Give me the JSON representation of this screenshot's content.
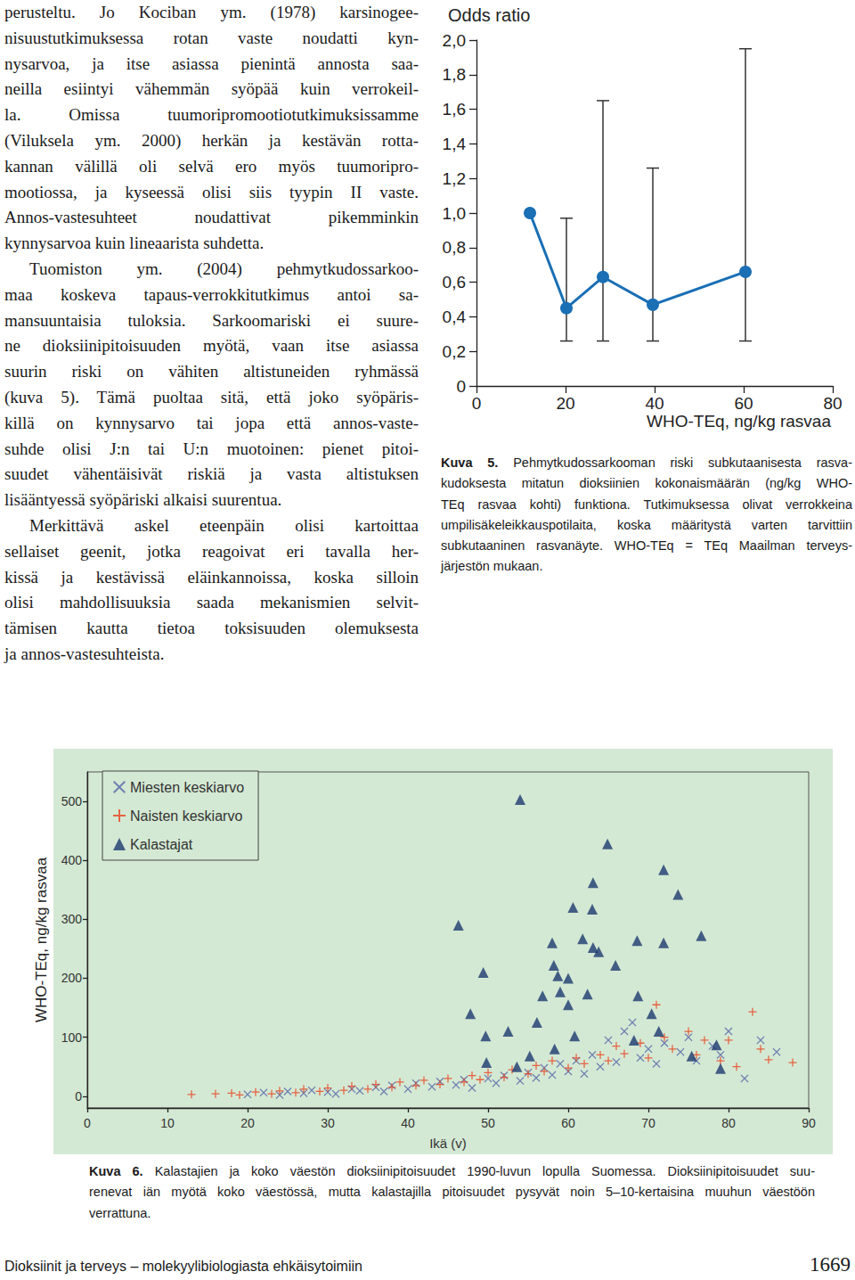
{
  "document": {
    "paragraphs": [
      [
        "perusteltu. Jo Kociban ym. (1978) karsinogee-",
        "nisuustutkimuksessa rotan vaste noudatti kyn-",
        "nysarvoa, ja itse asiassa pienintä annosta saa-",
        "neilla esiintyi vähemmän syöpää kuin verrokeil-",
        "la. Omissa tuumoripromootiotutkimuksissamme",
        "(Viluksela ym. 2000) herkän ja kestävän rotta-",
        "kannan välillä oli selvä ero myös tuumoripro-",
        "mootiossa, ja kyseessä olisi siis tyypin II vaste.",
        "Annos-vastesuhteet noudattivat pikemminkin",
        "kynnysarvoa kuin lineaarista suhdetta."
      ],
      [
        "Tuomiston ym. (2004) pehmytkudossarkoo-",
        "maa koskeva tapaus-verrokkitutkimus antoi sa-",
        "mansuuntaisia tuloksia. Sarkoomariski ei suure-",
        "ne dioksiinipitoisuuden myötä, vaan itse asiassa",
        "suurin riski on vähiten altistuneiden ryhmässä",
        "(kuva 5). Tämä puoltaa sitä, että joko syöpäris-",
        "killä on kynnysarvo tai jopa että annos-vaste-",
        "suhde olisi J:n tai U:n muotoinen: pienet pitoi-",
        "suudet vähentäisivät riskiä ja vasta altistuksen",
        "lisääntyessä syöpäriski alkaisi suurentua."
      ],
      [
        "Merkittävä askel eteenpäin olisi kartoittaa",
        "sellaiset geenit, jotka reagoivat eri tavalla her-",
        "kissä ja kestävissä eläinkannoissa, koska silloin",
        "olisi mahdollisuuksia saada mekanismien selvit-",
        "tämisen kautta tietoa toksisuuden olemuksesta",
        "ja annos-vastesuhteista."
      ]
    ],
    "figure5_caption": {
      "label": "Kuva 5.",
      "lines": [
        "Pehmytkudossarkooman riski subkutaanisesta rasva-",
        "kudoksesta mitatun dioksiinien kokonaismäärän (ng/kg WHO-",
        "TEq rasvaa kohti) funktiona. Tutkimuksessa olivat verrokkeina",
        "umpilisäkeleikkauspotilaita, koska määritystä varten tarvittiin",
        "subkutaaninen rasvanäyte. WHO-TEq = TEq Maailman terveys-",
        "järjestön mukaan."
      ]
    },
    "figure6_caption": {
      "label": "Kuva 6.",
      "lines": [
        "Kalastajien ja koko väestön dioksiinipitoisuudet 1990-luvun lopulla Suomessa. Dioksiinipitoisuudet suu-",
        "renevat iän myötä koko väestössä, mutta kalastajilla pitoisuudet pysyvät noin 5–10-kertaisina muuhun väestöön",
        "verrattuna."
      ]
    },
    "footer": {
      "title": "Dioksiinit ja terveys – molekyylibiologiasta ehkäisytoimiin",
      "page": "1669"
    }
  },
  "chart_data": [
    {
      "type": "line",
      "ylabel": "Odds ratio",
      "xlabel": "WHO-TEq, ng/kg rasvaa",
      "x": [
        12,
        20.2,
        28.4,
        39.6,
        60.4
      ],
      "values": [
        1.0,
        0.45,
        0.63,
        0.47,
        0.66
      ],
      "error_low": [
        null,
        0.26,
        0.26,
        0.26,
        0.26
      ],
      "error_high": [
        null,
        0.97,
        1.65,
        1.26,
        1.95
      ],
      "color": "#1a6fb5",
      "marker": "circle",
      "xlim": [
        0,
        80
      ],
      "xticks": [
        0,
        20,
        40,
        60,
        80
      ],
      "ylim": [
        0,
        2
      ],
      "yticks": [
        0,
        {
          "value": 0.2,
          "label": "0,2"
        },
        {
          "value": 0.4,
          "label": "0,4"
        },
        {
          "value": 0.6,
          "label": "0,6"
        },
        {
          "value": 0.8,
          "label": "0,8"
        },
        {
          "value": 1.0,
          "label": "1,0"
        },
        {
          "value": 1.2,
          "label": "1,2"
        },
        {
          "value": 1.4,
          "label": "1,4"
        },
        {
          "value": 1.6,
          "label": "1,6"
        },
        {
          "value": 1.8,
          "label": "1,8"
        },
        {
          "value": 2.0,
          "label": "2,0"
        }
      ],
      "grid": false
    },
    {
      "type": "scatter",
      "xlabel": "Ikä (v)",
      "ylabel": "WHO-TEq, ng/kg rasvaa",
      "legend": "upper left",
      "grid": false,
      "xlim": [
        0,
        90
      ],
      "xticks": [
        0,
        10,
        20,
        30,
        40,
        50,
        60,
        70,
        80,
        90
      ],
      "ylim": [
        -20,
        550
      ],
      "yticks": [
        0,
        100,
        200,
        300,
        400,
        500
      ],
      "series": [
        {
          "name": "Miesten keskiarvo",
          "color": "#5565a8",
          "marker": "x",
          "x": [
            20,
            22,
            24,
            25,
            27,
            28,
            30,
            31,
            33,
            34,
            36,
            37,
            38,
            40,
            41,
            43,
            44,
            46,
            47,
            48,
            50,
            51,
            52,
            54,
            55,
            56,
            57,
            58,
            59,
            60,
            61,
            62,
            63,
            64,
            65,
            66,
            67,
            68,
            69,
            70,
            71,
            72,
            74,
            75,
            76,
            78,
            79,
            80,
            82,
            84,
            86
          ],
          "values": [
            3,
            6,
            2,
            8,
            5,
            10,
            7,
            4,
            12,
            9,
            15,
            8,
            18,
            12,
            22,
            16,
            25,
            19,
            28,
            14,
            30,
            22,
            35,
            26,
            40,
            31,
            48,
            36,
            55,
            42,
            60,
            38,
            70,
            50,
            95,
            58,
            110,
            125,
            65,
            80,
            55,
            90,
            75,
            100,
            60,
            85,
            70,
            110,
            30,
            95,
            75
          ]
        },
        {
          "name": "Naisten keskiarvo",
          "color": "#e8401c",
          "marker": "plus",
          "x": [
            13,
            16,
            18,
            19,
            21,
            23,
            24,
            26,
            27,
            29,
            30,
            32,
            33,
            35,
            36,
            38,
            39,
            41,
            42,
            44,
            45,
            47,
            48,
            49,
            50,
            52,
            53,
            55,
            56,
            57,
            58,
            60,
            61,
            62,
            64,
            65,
            66,
            67,
            69,
            70,
            71,
            72,
            73,
            75,
            76,
            77,
            79,
            80,
            81,
            83,
            84,
            85,
            88
          ],
          "values": [
            3,
            4,
            5,
            2,
            7,
            4,
            9,
            6,
            12,
            8,
            14,
            10,
            17,
            12,
            20,
            15,
            24,
            18,
            27,
            20,
            30,
            24,
            35,
            28,
            40,
            32,
            45,
            38,
            52,
            42,
            60,
            48,
            65,
            55,
            70,
            60,
            85,
            72,
            90,
            65,
            155,
            100,
            80,
            110,
            70,
            95,
            60,
            95,
            50,
            143,
            80,
            62,
            57
          ]
        },
        {
          "name": "Kalastajat",
          "color": "#1c3a6e",
          "marker": "triangle",
          "x": [
            54,
            46.3,
            49.4,
            47.8,
            49.7,
            52.5,
            49.8,
            58,
            58.2,
            58.7,
            60,
            60.6,
            61.8,
            63,
            63.1,
            63.8,
            60,
            59,
            56.8,
            56.1,
            58.3,
            60.8,
            62.4,
            64.9,
            63.1,
            65.9,
            68.6,
            71.9,
            73.7,
            71.9,
            76.6,
            68.7,
            68.2,
            70.4,
            71.3,
            75.4,
            78.5,
            79,
            55.2,
            53.6
          ],
          "values": [
            503,
            290,
            210,
            140,
            102,
            110,
            57,
            260,
            222,
            204,
            200,
            320,
            267,
            317,
            252,
            245,
            155,
            177,
            170,
            125,
            80,
            102,
            173,
            428,
            362,
            222,
            264,
            384,
            342,
            260,
            272,
            170,
            95,
            140,
            110,
            68,
            87,
            47,
            68,
            50
          ]
        }
      ]
    }
  ]
}
